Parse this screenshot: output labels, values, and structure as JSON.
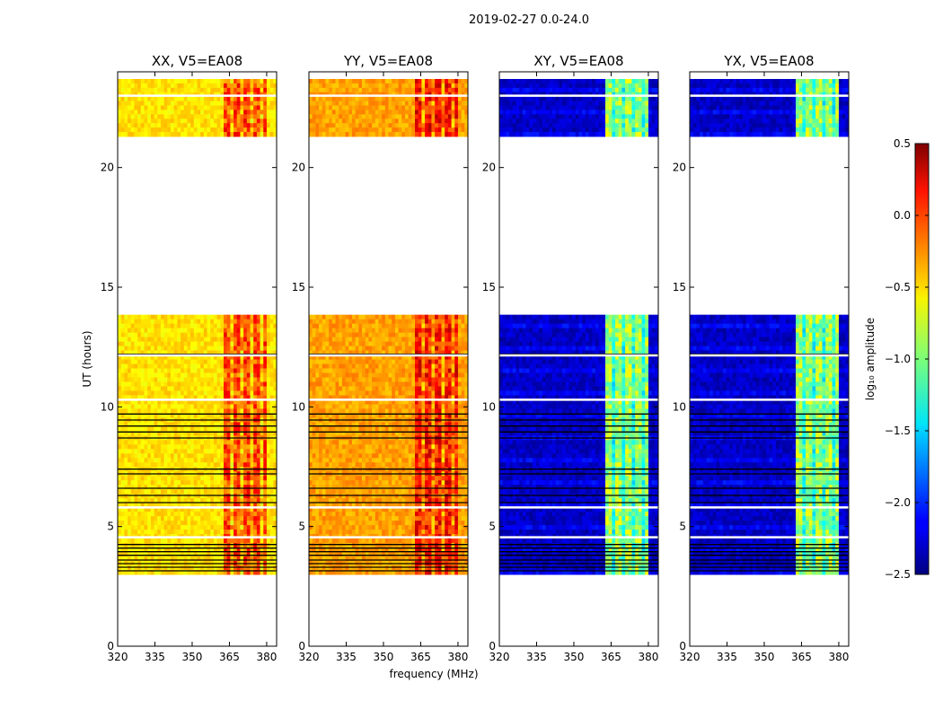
{
  "chart_data": {
    "type": "heatmap",
    "suptitle": "2019-02-27 0.0-24.0",
    "xlabel": "frequency (MHz)",
    "ylabel": "UT (hours)",
    "xlim": [
      320,
      384
    ],
    "xticks": [
      320,
      335,
      350,
      365,
      380
    ],
    "ylim": [
      0,
      24
    ],
    "yticks": [
      0,
      5,
      10,
      15,
      20
    ],
    "colorbar": {
      "label": "log₁₀ amplitude",
      "range": [
        -2.5,
        0.5
      ],
      "ticks": [
        0.5,
        0.0,
        -0.5,
        -1.0,
        -1.5,
        -2.0,
        -2.5
      ],
      "tick_labels": [
        "0.5",
        "0.0",
        "−0.5",
        "−1.0",
        "−1.5",
        "−2.0",
        "−2.5"
      ],
      "colormap": "jet"
    },
    "panels": [
      {
        "title": "XX, V5=EA08",
        "base_level": -0.55,
        "rfi_level": -0.1
      },
      {
        "title": "YY, V5=EA08",
        "base_level": -0.35,
        "rfi_level": 0.05
      },
      {
        "title": "XY, V5=EA08",
        "base_level": -2.3,
        "rfi_level": -0.9
      },
      {
        "title": "YX, V5=EA08",
        "base_level": -2.3,
        "rfi_level": -0.9
      }
    ],
    "data_blocks_ut": [
      [
        3.0,
        13.85
      ],
      [
        21.3,
        23.7
      ]
    ],
    "gap_lines_white_ut": [
      4.55,
      5.8,
      10.3,
      12.15,
      23.0
    ],
    "gap_lines_black_ut": [
      3.15,
      3.3,
      3.45,
      3.6,
      3.8,
      3.95,
      4.1,
      4.25,
      6.0,
      6.3,
      6.6,
      7.2,
      7.4,
      8.7,
      8.95,
      9.2,
      9.45,
      9.7,
      12.2
    ],
    "rfi_band_mhz": [
      363,
      380
    ]
  }
}
